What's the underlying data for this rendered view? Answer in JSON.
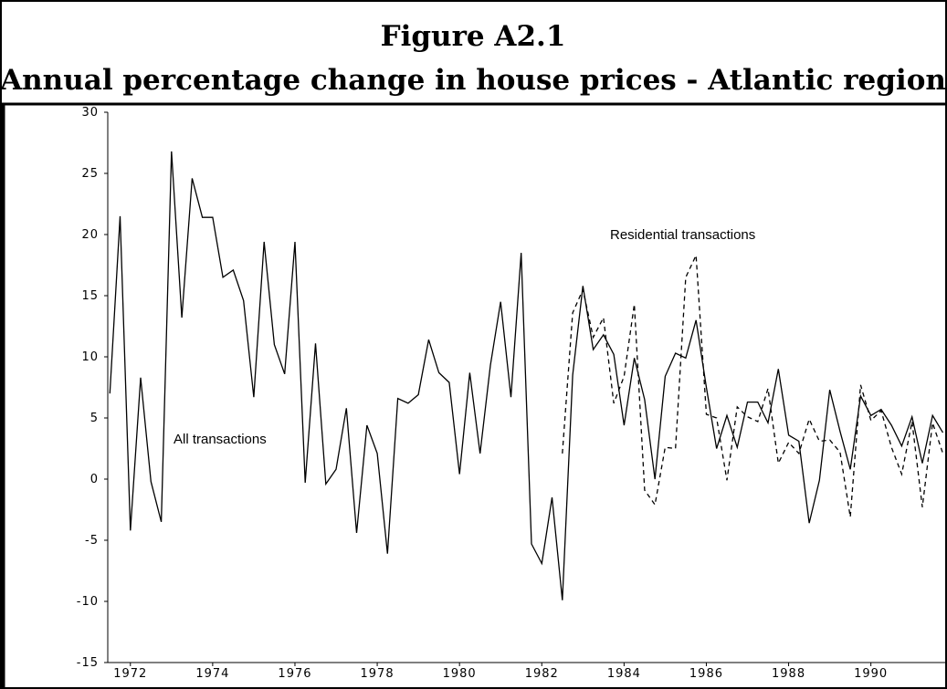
{
  "chart_data": {
    "type": "line",
    "title": "Figure A2.1",
    "subtitle": "Annual percentage change in house prices - Atlantic region",
    "annotations": [
      "All transactions",
      "Residential transactions"
    ],
    "x": [
      1971.5,
      1971.75,
      1972,
      1972.25,
      1972.5,
      1972.75,
      1973,
      1973.25,
      1973.5,
      1973.75,
      1974,
      1974.25,
      1974.5,
      1974.75,
      1975,
      1975.25,
      1975.5,
      1975.75,
      1976,
      1976.25,
      1976.5,
      1976.75,
      1977,
      1977.25,
      1977.5,
      1977.75,
      1978,
      1978.25,
      1978.5,
      1978.75,
      1979,
      1979.25,
      1979.5,
      1979.75,
      1980,
      1980.25,
      1980.5,
      1980.75,
      1981,
      1981.25,
      1981.5,
      1981.75,
      1982,
      1982.25,
      1982.5,
      1982.75,
      1983,
      1983.25,
      1983.5,
      1983.75,
      1984,
      1984.25,
      1984.5,
      1984.75,
      1985,
      1985.25,
      1985.5,
      1985.75,
      1986,
      1986.25,
      1986.5,
      1986.75,
      1987,
      1987.25,
      1987.5,
      1987.75,
      1988,
      1988.25,
      1988.5,
      1988.75,
      1989,
      1989.25,
      1989.5,
      1989.75,
      1990,
      1990.25,
      1990.5,
      1990.75,
      1991,
      1991.25,
      1991.5,
      1991.75
    ],
    "series": [
      {
        "name": "All transactions",
        "color": "#000000",
        "dash": "none",
        "values": [
          7,
          21.5,
          -4.2,
          8.3,
          -0.2,
          -3.5,
          26.8,
          13.2,
          24.6,
          21.4,
          21.4,
          16.5,
          17.1,
          14.6,
          6.7,
          19.4,
          11,
          8.6,
          19.4,
          -0.3,
          11.1,
          -0.4,
          0.8,
          5.8,
          -4.4,
          4.4,
          2.1,
          -6.1,
          6.6,
          6.2,
          6.9,
          11.4,
          8.7,
          7.9,
          0.4,
          8.7,
          2.1,
          9.3,
          14.5,
          6.7,
          18.5,
          -5.3,
          -6.9,
          -1.5,
          -9.9,
          8.5,
          15.8,
          10.6,
          11.8,
          10.2,
          4.4,
          9.9,
          6.5,
          0,
          8.4,
          10.3,
          9.9,
          13,
          7.5,
          2.5,
          5.2,
          2.6,
          6.3,
          6.3,
          4.6,
          9,
          3.6,
          3.1,
          -3.6,
          -0.1,
          7.3,
          3.9,
          0.8,
          6.8,
          5.2,
          5.7,
          4.4,
          2.7,
          5.1,
          1.3,
          5.2,
          3.8
        ]
      },
      {
        "name": "Residential transactions",
        "color": "#000000",
        "dash": "5,4",
        "values": [
          null,
          null,
          null,
          null,
          null,
          null,
          null,
          null,
          null,
          null,
          null,
          null,
          null,
          null,
          null,
          null,
          null,
          null,
          null,
          null,
          null,
          null,
          null,
          null,
          null,
          null,
          null,
          null,
          null,
          null,
          null,
          null,
          null,
          null,
          null,
          null,
          null,
          null,
          null,
          null,
          null,
          null,
          null,
          null,
          2.1,
          13.6,
          15.5,
          11.6,
          13.2,
          6.2,
          8.4,
          14.3,
          -0.9,
          -2.1,
          2.6,
          2.5,
          16.5,
          18.3,
          5.3,
          5,
          -0.1,
          5.9,
          5.1,
          4.7,
          7.4,
          1.3,
          3,
          2.1,
          4.9,
          3.1,
          3.2,
          2.2,
          -3.1,
          7.7,
          4.8,
          5.6,
          2.6,
          0.4,
          4.7,
          -2.3,
          4.6,
          2.1
        ]
      }
    ],
    "xlim": [
      1971.45,
      1991.85
    ],
    "xticks": [
      1972,
      1974,
      1976,
      1978,
      1980,
      1982,
      1984,
      1986,
      1988,
      1990
    ],
    "ylim": [
      -15,
      30
    ],
    "yticks": [
      -15,
      -10,
      -5,
      0,
      5,
      10,
      15,
      20,
      25,
      30
    ]
  }
}
